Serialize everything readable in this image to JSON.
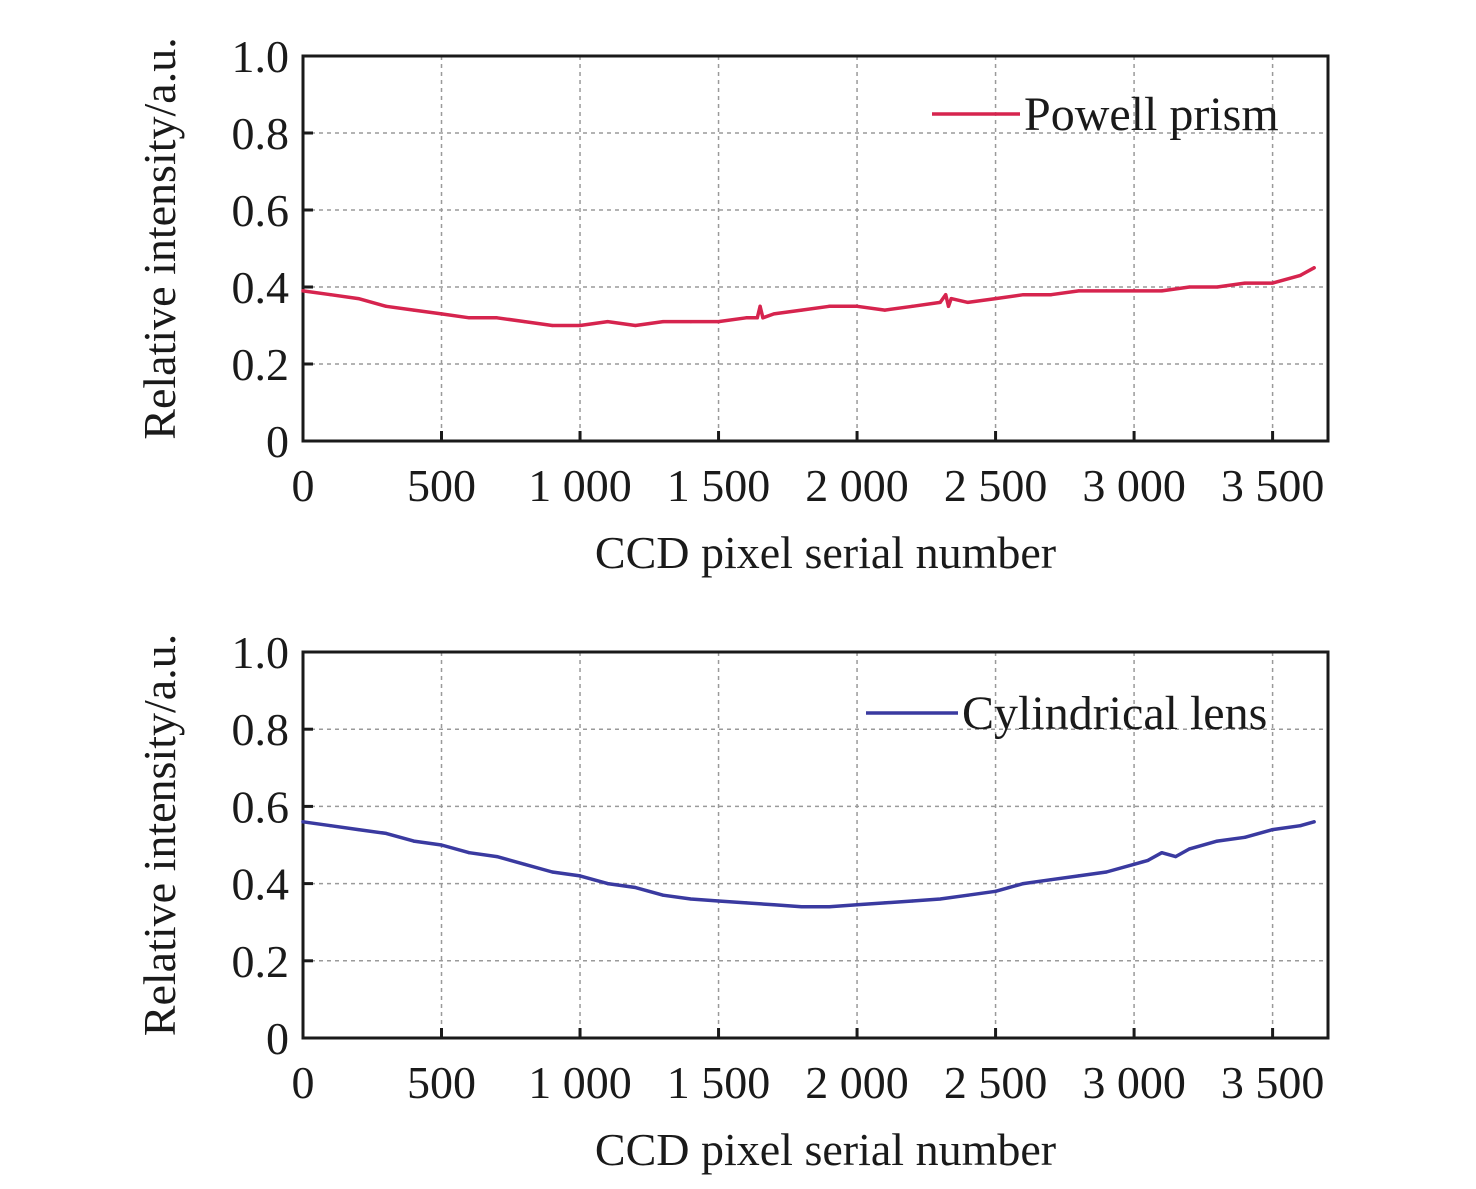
{
  "chart_data": [
    {
      "type": "line",
      "xlabel": "CCD pixel serial number",
      "ylabel": "Relative intensity/a.u.",
      "xlim": [
        0,
        3700
      ],
      "ylim": [
        0,
        1.0
      ],
      "x_ticks": [
        0,
        500,
        1000,
        1500,
        2000,
        2500,
        3000,
        3500
      ],
      "x_tick_labels": [
        "0",
        "500",
        "1 000",
        "1 500",
        "2 000",
        "2 500",
        "3 000",
        "3 500"
      ],
      "y_ticks": [
        0,
        0.2,
        0.4,
        0.6,
        0.8,
        1.0
      ],
      "y_tick_labels": [
        "0",
        "0.2",
        "0.4",
        "0.6",
        "0.8",
        "1.0"
      ],
      "grid": true,
      "legend_position": "top-right",
      "series": [
        {
          "name": "Powell prism",
          "color": "#d6244e",
          "x": [
            0,
            100,
            200,
            300,
            400,
            500,
            600,
            700,
            800,
            900,
            1000,
            1100,
            1200,
            1300,
            1400,
            1500,
            1600,
            1640,
            1650,
            1660,
            1700,
            1800,
            1900,
            2000,
            2100,
            2200,
            2300,
            2320,
            2330,
            2340,
            2400,
            2500,
            2600,
            2700,
            2800,
            2900,
            3000,
            3100,
            3200,
            3300,
            3400,
            3500,
            3600,
            3650
          ],
          "y": [
            0.39,
            0.38,
            0.37,
            0.35,
            0.34,
            0.33,
            0.32,
            0.32,
            0.31,
            0.3,
            0.3,
            0.31,
            0.3,
            0.31,
            0.31,
            0.31,
            0.32,
            0.32,
            0.35,
            0.32,
            0.33,
            0.34,
            0.35,
            0.35,
            0.34,
            0.35,
            0.36,
            0.38,
            0.35,
            0.37,
            0.36,
            0.37,
            0.38,
            0.38,
            0.39,
            0.39,
            0.39,
            0.39,
            0.4,
            0.4,
            0.41,
            0.41,
            0.43,
            0.45
          ]
        }
      ]
    },
    {
      "type": "line",
      "xlabel": "CCD pixel serial number",
      "ylabel": "Relative intensity/a.u.",
      "xlim": [
        0,
        3700
      ],
      "ylim": [
        0,
        1.0
      ],
      "x_ticks": [
        0,
        500,
        1000,
        1500,
        2000,
        2500,
        3000,
        3500
      ],
      "x_tick_labels": [
        "0",
        "500",
        "1 000",
        "1 500",
        "2 000",
        "2 500",
        "3 000",
        "3 500"
      ],
      "y_ticks": [
        0,
        0.2,
        0.4,
        0.6,
        0.8,
        1.0
      ],
      "y_tick_labels": [
        "0",
        "0.2",
        "0.4",
        "0.6",
        "0.8",
        "1.0"
      ],
      "grid": true,
      "legend_position": "top-right",
      "series": [
        {
          "name": "Cylindrical lens",
          "color": "#3a3aa0",
          "x": [
            0,
            100,
            200,
            300,
            400,
            500,
            600,
            700,
            800,
            900,
            1000,
            1100,
            1200,
            1300,
            1400,
            1500,
            1600,
            1700,
            1800,
            1900,
            2000,
            2100,
            2200,
            2300,
            2400,
            2500,
            2600,
            2700,
            2800,
            2900,
            3000,
            3050,
            3100,
            3150,
            3200,
            3300,
            3400,
            3500,
            3600,
            3650
          ],
          "y": [
            0.56,
            0.55,
            0.54,
            0.53,
            0.51,
            0.5,
            0.48,
            0.47,
            0.45,
            0.43,
            0.42,
            0.4,
            0.39,
            0.37,
            0.36,
            0.355,
            0.35,
            0.345,
            0.34,
            0.34,
            0.345,
            0.35,
            0.355,
            0.36,
            0.37,
            0.38,
            0.4,
            0.41,
            0.42,
            0.43,
            0.45,
            0.46,
            0.48,
            0.47,
            0.49,
            0.51,
            0.52,
            0.54,
            0.55,
            0.56
          ]
        }
      ]
    }
  ]
}
